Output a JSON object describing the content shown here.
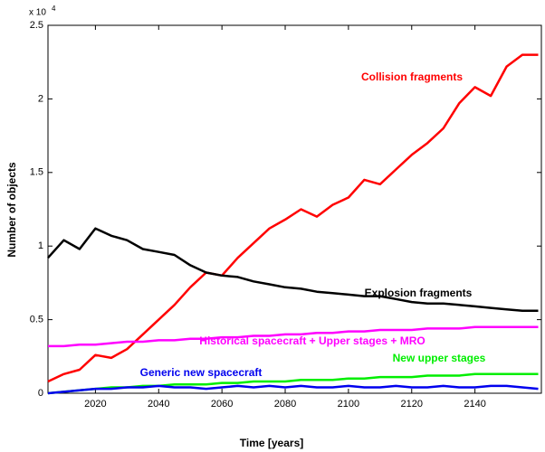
{
  "chart_data": {
    "type": "line",
    "xlabel": "Time [years]",
    "ylabel": "Number of objects",
    "y_scale_label": {
      "base": "x 10",
      "exponent": "4"
    },
    "x": [
      2005,
      2010,
      2015,
      2020,
      2025,
      2030,
      2035,
      2040,
      2045,
      2050,
      2055,
      2060,
      2065,
      2070,
      2075,
      2080,
      2085,
      2090,
      2095,
      2100,
      2105,
      2110,
      2115,
      2120,
      2125,
      2130,
      2135,
      2140,
      2145,
      2150,
      2155,
      2160
    ],
    "xlim": [
      2005,
      2161
    ],
    "xticks": [
      2020,
      2040,
      2060,
      2080,
      2100,
      2120,
      2140
    ],
    "ylim": [
      0,
      2.5
    ],
    "yticks": [
      0,
      0.5,
      1,
      1.5,
      2,
      2.5
    ],
    "series": [
      {
        "name": "Collision fragments",
        "color": "#ff0000",
        "values": [
          0.08,
          0.13,
          0.16,
          0.26,
          0.24,
          0.3,
          0.4,
          0.5,
          0.6,
          0.72,
          0.82,
          0.8,
          0.92,
          1.02,
          1.12,
          1.18,
          1.25,
          1.2,
          1.28,
          1.33,
          1.45,
          1.42,
          1.52,
          1.62,
          1.7,
          1.8,
          1.97,
          2.08,
          2.02,
          2.22,
          2.3,
          2.3
        ]
      },
      {
        "name": "Explosion fragments",
        "color": "#000000",
        "values": [
          0.92,
          1.04,
          0.98,
          1.12,
          1.07,
          1.04,
          0.98,
          0.96,
          0.94,
          0.87,
          0.82,
          0.8,
          0.79,
          0.76,
          0.74,
          0.72,
          0.71,
          0.69,
          0.68,
          0.67,
          0.66,
          0.66,
          0.64,
          0.62,
          0.61,
          0.61,
          0.6,
          0.59,
          0.58,
          0.57,
          0.56,
          0.56
        ]
      },
      {
        "name": "Historical spacecraft  + Upper stages + MRO",
        "color": "#ff00ff",
        "values": [
          0.32,
          0.32,
          0.33,
          0.33,
          0.34,
          0.35,
          0.35,
          0.36,
          0.36,
          0.37,
          0.37,
          0.38,
          0.38,
          0.39,
          0.39,
          0.4,
          0.4,
          0.41,
          0.41,
          0.42,
          0.42,
          0.43,
          0.43,
          0.43,
          0.44,
          0.44,
          0.44,
          0.45,
          0.45,
          0.45,
          0.45,
          0.45
        ]
      },
      {
        "name": "New upper stages",
        "color": "#00ee00",
        "values": [
          0.0,
          0.01,
          0.02,
          0.03,
          0.04,
          0.04,
          0.05,
          0.05,
          0.06,
          0.06,
          0.06,
          0.07,
          0.07,
          0.08,
          0.08,
          0.08,
          0.09,
          0.09,
          0.09,
          0.1,
          0.1,
          0.11,
          0.11,
          0.11,
          0.12,
          0.12,
          0.12,
          0.13,
          0.13,
          0.13,
          0.13,
          0.13
        ]
      },
      {
        "name": "Generic new spacecraft",
        "color": "#0000ee",
        "values": [
          0.0,
          0.01,
          0.02,
          0.03,
          0.03,
          0.04,
          0.04,
          0.05,
          0.04,
          0.04,
          0.03,
          0.04,
          0.05,
          0.04,
          0.05,
          0.04,
          0.05,
          0.04,
          0.04,
          0.05,
          0.04,
          0.04,
          0.05,
          0.04,
          0.04,
          0.05,
          0.04,
          0.04,
          0.05,
          0.05,
          0.04,
          0.03
        ]
      }
    ]
  }
}
